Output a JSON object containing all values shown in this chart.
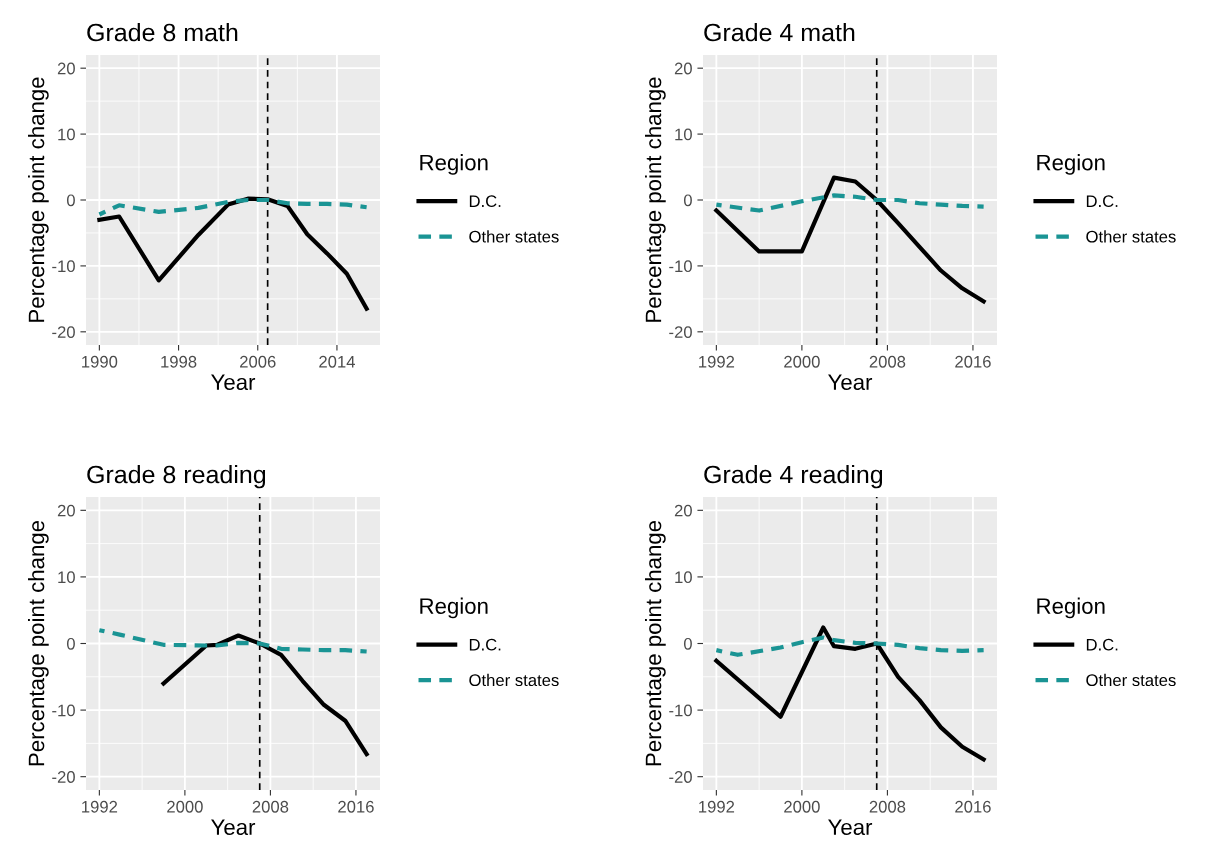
{
  "chart_data": [
    {
      "type": "line",
      "title": "Grade 8 math",
      "xlabel": "Year",
      "ylabel": "Percentage point change",
      "xlim": [
        1988.65,
        2018.35
      ],
      "xticks": [
        1990,
        1998,
        2006,
        2014
      ],
      "ylim": [
        -22,
        22
      ],
      "yticks": [
        -20,
        -10,
        0,
        10,
        20
      ],
      "grid": true,
      "legend": "right",
      "legend_title": "Region",
      "ref_lines": [
        {
          "axis": "x",
          "value": 2007,
          "color": "#000000",
          "line_style": "dashed"
        }
      ],
      "series": [
        {
          "name": "D.C.",
          "color": "#000000",
          "line_style": "solid",
          "x": [
            1990,
            1992,
            1996,
            2000,
            2003,
            2005,
            2007,
            2009,
            2011,
            2013,
            2015,
            2017
          ],
          "values": [
            -3.0,
            -2.5,
            -12.2,
            -5.3,
            -0.7,
            0.2,
            0.1,
            -0.9,
            -5.2,
            -8.1,
            -11.2,
            -16.5
          ]
        },
        {
          "name": "Other states",
          "color": "#1a9494",
          "line_style": "dashed",
          "x": [
            1990,
            1992,
            1996,
            2000,
            2003,
            2005,
            2007,
            2009,
            2011,
            2013,
            2015,
            2017
          ],
          "values": [
            -2.2,
            -0.8,
            -1.8,
            -1.2,
            -0.3,
            0.0,
            0.0,
            -0.5,
            -0.6,
            -0.6,
            -0.7,
            -1.1
          ]
        }
      ]
    },
    {
      "type": "line",
      "title": "Grade 4 math",
      "xlabel": "Year",
      "ylabel": "Percentage point change",
      "xlim": [
        1990.75,
        2018.25
      ],
      "xticks": [
        1992,
        2000,
        2008,
        2016
      ],
      "ylim": [
        -22,
        22
      ],
      "yticks": [
        -20,
        -10,
        0,
        10,
        20
      ],
      "grid": true,
      "legend": "right",
      "legend_title": "Region",
      "ref_lines": [
        {
          "axis": "x",
          "value": 2007,
          "color": "#000000",
          "line_style": "dashed"
        }
      ],
      "series": [
        {
          "name": "D.C.",
          "color": "#000000",
          "line_style": "solid",
          "x": [
            1992,
            1996,
            2000,
            2003,
            2005,
            2007,
            2009,
            2011,
            2013,
            2015,
            2017
          ],
          "values": [
            -1.6,
            -7.8,
            -7.8,
            3.4,
            2.8,
            0.0,
            -3.5,
            -7.1,
            -10.7,
            -13.4,
            -15.4
          ]
        },
        {
          "name": "Other states",
          "color": "#1a9494",
          "line_style": "dashed",
          "x": [
            1992,
            1996,
            2000,
            2003,
            2005,
            2007,
            2009,
            2011,
            2013,
            2015,
            2017
          ],
          "values": [
            -0.7,
            -1.6,
            -0.2,
            0.7,
            0.5,
            0.0,
            0.0,
            -0.5,
            -0.7,
            -0.9,
            -1.0
          ]
        }
      ]
    },
    {
      "type": "line",
      "title": "Grade 8 reading",
      "xlabel": "Year",
      "ylabel": "Percentage point change",
      "xlim": [
        1990.75,
        2018.25
      ],
      "xticks": [
        1992,
        2000,
        2008,
        2016
      ],
      "ylim": [
        -22,
        22
      ],
      "yticks": [
        -20,
        -10,
        0,
        10,
        20
      ],
      "grid": true,
      "legend": "right",
      "legend_title": "Region",
      "ref_lines": [
        {
          "axis": "x",
          "value": 2007,
          "color": "#000000",
          "line_style": "dashed"
        }
      ],
      "series": [
        {
          "name": "D.C.",
          "color": "#000000",
          "line_style": "solid",
          "x": [
            1998,
            2002,
            2003,
            2005,
            2007,
            2009,
            2011,
            2013,
            2015,
            2017
          ],
          "values": [
            -6.0,
            -0.3,
            -0.2,
            1.2,
            0.0,
            -1.7,
            -5.6,
            -9.2,
            -11.6,
            -16.6
          ]
        },
        {
          "name": "Other states",
          "color": "#1a9494",
          "line_style": "dashed",
          "x": [
            1992,
            1994,
            1998,
            2002,
            2003,
            2005,
            2007,
            2009,
            2011,
            2013,
            2015,
            2017
          ],
          "values": [
            2.0,
            1.3,
            -0.2,
            -0.3,
            -0.3,
            0.1,
            0.0,
            -0.8,
            -0.9,
            -1.0,
            -1.0,
            -1.2
          ]
        }
      ]
    },
    {
      "type": "line",
      "title": "Grade 4 reading",
      "xlabel": "Year",
      "ylabel": "Percentage point change",
      "xlim": [
        1990.75,
        2018.25
      ],
      "xticks": [
        1992,
        2000,
        2008,
        2016
      ],
      "ylim": [
        -22,
        22
      ],
      "yticks": [
        -20,
        -10,
        0,
        10,
        20
      ],
      "grid": true,
      "legend": "right",
      "legend_title": "Region",
      "ref_lines": [
        {
          "axis": "x",
          "value": 2007,
          "color": "#000000",
          "line_style": "dashed"
        }
      ],
      "series": [
        {
          "name": "D.C.",
          "color": "#000000",
          "line_style": "solid",
          "x": [
            1992,
            1998,
            2002,
            2003,
            2005,
            2007,
            2009,
            2011,
            2013,
            2015,
            2017
          ],
          "values": [
            -2.6,
            -11.0,
            2.4,
            -0.4,
            -0.8,
            0.0,
            -5.0,
            -8.5,
            -12.6,
            -15.5,
            -17.4
          ]
        },
        {
          "name": "Other states",
          "color": "#1a9494",
          "line_style": "dashed",
          "x": [
            1992,
            1994,
            1998,
            2000,
            2002,
            2003,
            2005,
            2007,
            2009,
            2011,
            2013,
            2015,
            2017
          ],
          "values": [
            -1.0,
            -1.7,
            -0.6,
            0.2,
            0.9,
            0.5,
            0.1,
            0.0,
            -0.2,
            -0.7,
            -1.0,
            -1.1,
            -1.0
          ]
        }
      ]
    }
  ]
}
